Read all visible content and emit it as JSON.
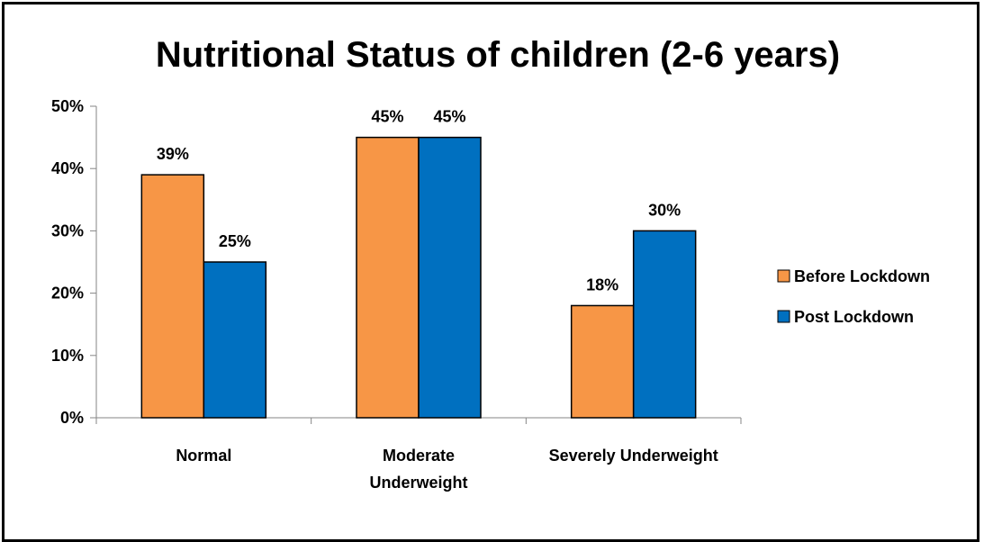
{
  "chart_data": {
    "type": "bar",
    "title": "Nutritional Status of children (2-6 years)",
    "xlabel": "",
    "ylabel": "",
    "categories": [
      "Normal",
      "Moderate Underweight",
      "Severely Underweight"
    ],
    "category_lines": [
      [
        "Normal"
      ],
      [
        "Moderate",
        "Underweight"
      ],
      [
        "Severely Underweight"
      ]
    ],
    "series": [
      {
        "name": "Before Lockdown",
        "values": [
          39,
          45,
          18
        ],
        "color": "#F79646"
      },
      {
        "name": "Post Lockdown",
        "values": [
          25,
          45,
          30
        ],
        "color": "#0070C0"
      }
    ],
    "ylim": [
      0,
      50
    ],
    "yticks": [
      "0%",
      "10%",
      "20%",
      "30%",
      "40%",
      "50%"
    ],
    "value_suffix": "%",
    "grid": false,
    "legend_position": "right"
  }
}
